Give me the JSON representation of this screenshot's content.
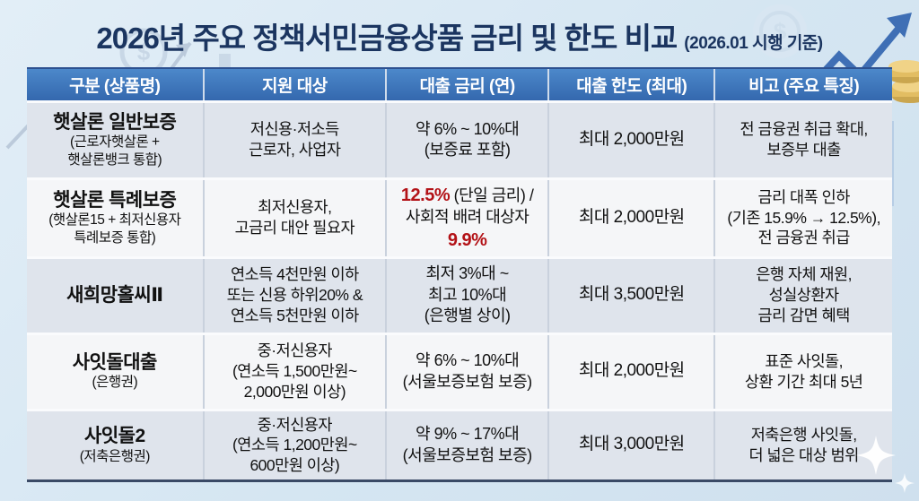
{
  "title": {
    "main": "2026년 주요 정책서민금융상품 금리 및 한도 비교",
    "suffix": "(2026.01 시행 기준)"
  },
  "colors": {
    "page_bg": "#d5e6f2",
    "title_navy": "#1b3560",
    "accent_red": "#b31217",
    "header_bg": "#4c88ca",
    "header_bg_dark": "#3468ae",
    "row_alt_bg": "#dfe4ec",
    "row_bg": "#f5f6f8"
  },
  "icons": {
    "top_left": "line-chart-arrow-icon",
    "top_right": "growth-arrow-icon",
    "coins": "coin-stack-icon",
    "sparkle": "sparkle-icon"
  },
  "table": {
    "headers": [
      "구분 (상품명)",
      "지원 대상",
      "대출 금리 (연)",
      "대출 한도 (최대)",
      "비고 (주요 특징)"
    ],
    "rows": [
      {
        "product": "햇살론 일반보증",
        "product_sub": [
          "(근로자햇살론 +",
          "햇살론뱅크 통합)"
        ],
        "target": [
          "저신용·저소득",
          "근로자, 사업자"
        ],
        "rate": [
          [
            {
              "t": "약 6% ~ 10%대",
              "red": false
            }
          ],
          [
            {
              "t": "(보증료 포함)",
              "red": false
            }
          ]
        ],
        "limit": "최대 2,000만원",
        "note": [
          "전 금융권 취급 확대,",
          "보증부 대출"
        ]
      },
      {
        "product": "햇살론 특례보증",
        "product_sub": [
          "(햇살론15 + 최저신용자",
          "특례보증 통합)"
        ],
        "target": [
          "최저신용자,",
          "고금리 대안 필요자"
        ],
        "rate": [
          [
            {
              "t": "12.5%",
              "red": true
            },
            {
              "t": " (단일 금리) /",
              "red": false
            }
          ],
          [
            {
              "t": "사회적 배려 대상자",
              "red": false
            }
          ],
          [
            {
              "t": "9.9%",
              "red": true
            }
          ]
        ],
        "limit": "최대 2,000만원",
        "note": [
          "금리 대폭 인하",
          "(기존 15.9% → 12.5%),",
          "전 금융권 취급"
        ]
      },
      {
        "product": "새희망홀씨Ⅱ",
        "product_sub": [],
        "target": [
          "연소득 4천만원 이하",
          "또는 신용 하위20% &",
          "연소득 5천만원 이하"
        ],
        "rate": [
          [
            {
              "t": "최저 3%대 ~",
              "red": false
            }
          ],
          [
            {
              "t": "최고 10%대",
              "red": false
            }
          ],
          [
            {
              "t": "(은행별 상이)",
              "red": false
            }
          ]
        ],
        "limit": "최대 3,500만원",
        "note": [
          "은행 자체 재원,",
          "성실상환자",
          "금리 감면 혜택"
        ]
      },
      {
        "product": "사잇돌대출",
        "product_sub": [
          "(은행권)"
        ],
        "target": [
          "중·저신용자",
          "(연소득 1,500만원~",
          "2,000만원 이상)"
        ],
        "rate": [
          [
            {
              "t": "약 6% ~ 10%대",
              "red": false
            }
          ],
          [
            {
              "t": "(서울보증보험 보증)",
              "red": false
            }
          ]
        ],
        "limit": "최대 2,000만원",
        "note": [
          "표준 사잇돌,",
          "상환 기간 최대 5년"
        ]
      },
      {
        "product": "사잇돌2",
        "product_sub": [
          "(저축은행권)"
        ],
        "target": [
          "중·저신용자",
          "(연소득 1,200만원~",
          "600만원 이상)"
        ],
        "rate": [
          [
            {
              "t": "약 9% ~ 17%대",
              "red": false
            }
          ],
          [
            {
              "t": "(서울보증보험 보증)",
              "red": false
            }
          ]
        ],
        "limit": "최대 3,000만원",
        "note": [
          "저축은행 사잇돌,",
          "더 넓은 대상 범위"
        ]
      }
    ]
  }
}
